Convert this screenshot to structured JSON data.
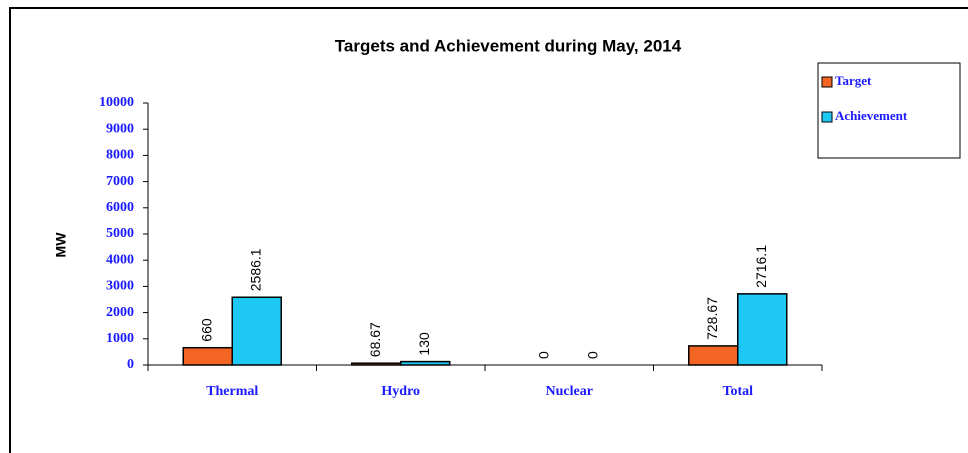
{
  "chart_data": {
    "type": "bar",
    "title": "Targets and Achievement during May, 2014",
    "y_label": "MW",
    "categories": [
      "Thermal",
      "Hydro",
      "Nuclear",
      "Total"
    ],
    "series": [
      {
        "name": "Target",
        "color": "#f26522",
        "values": [
          660,
          68.67,
          0,
          728.67
        ]
      },
      {
        "name": "Achievement",
        "color": "#1ec8f4",
        "values": [
          2586.1,
          130,
          0,
          2716.1
        ]
      }
    ],
    "ylim": [
      0,
      10000
    ],
    "yticks": [
      0,
      1000,
      2000,
      3000,
      4000,
      5000,
      6000,
      7000,
      8000,
      9000,
      10000
    ],
    "legend": "right"
  }
}
